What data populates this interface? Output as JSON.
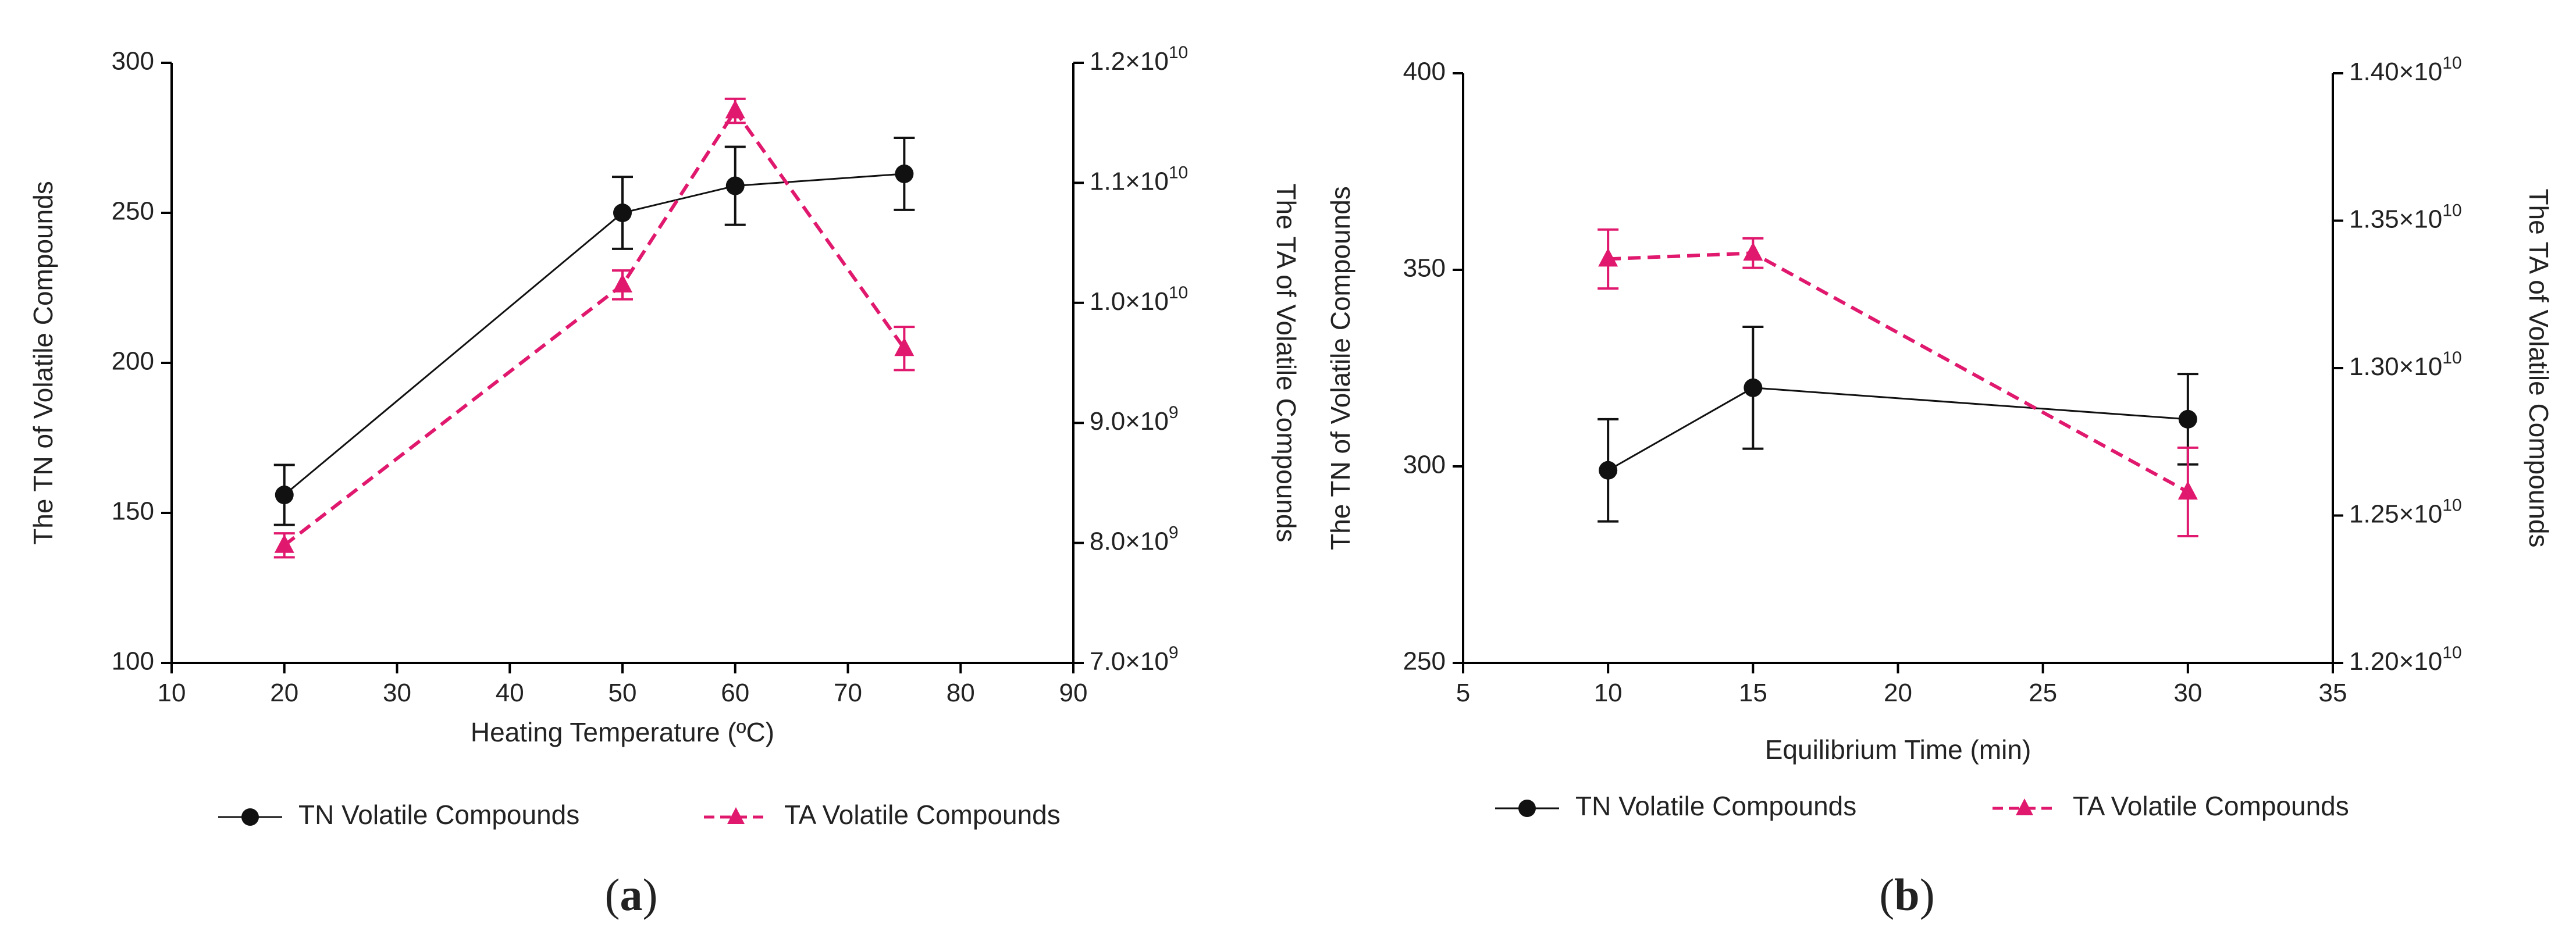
{
  "colors": {
    "tn": "#111111",
    "ta": "#e0186e",
    "axis": "#000000"
  },
  "chart_data": [
    {
      "type": "line",
      "panel_label": "a",
      "xlabel": "Heating Temperature (ºC)",
      "ylabel_left": "The TN of Volatile Compounds",
      "ylabel_right": "The TA of Volatile Compounds",
      "xlim": [
        10,
        90
      ],
      "ylim_left": [
        100,
        300
      ],
      "ylim_right": [
        7000000000.0,
        12000000000.0
      ],
      "x_ticks": [
        "10",
        "20",
        "30",
        "40",
        "50",
        "60",
        "70",
        "80",
        "90"
      ],
      "y_left_ticks": [
        "100",
        "150",
        "200",
        "250",
        "300"
      ],
      "y_right_ticks": [
        {
          "mant": "7.0×10",
          "exp": "9"
        },
        {
          "mant": "8.0×10",
          "exp": "9"
        },
        {
          "mant": "9.0×10",
          "exp": "9"
        },
        {
          "mant": "1.0×10",
          "exp": "10"
        },
        {
          "mant": "1.1×10",
          "exp": "10"
        },
        {
          "mant": "1.2×10",
          "exp": "10"
        }
      ],
      "series": [
        {
          "name": "TN Volatile Compounds",
          "axis": "left",
          "style": "solid",
          "marker": "circle",
          "x": [
            20,
            50,
            60,
            75
          ],
          "y": [
            156,
            250,
            259,
            263
          ],
          "err": [
            10,
            12,
            13,
            12
          ]
        },
        {
          "name": "TA Volatile Compounds",
          "axis": "right",
          "style": "dashed",
          "marker": "triangle",
          "x": [
            20,
            50,
            60,
            75
          ],
          "y": [
            7980000000.0,
            10150000000.0,
            11600000000.0,
            9620000000.0
          ],
          "err": [
            100000000.0,
            120000000.0,
            100000000.0,
            180000000.0
          ]
        }
      ],
      "legend": [
        "TN Volatile Compounds",
        "TA Volatile Compounds"
      ]
    },
    {
      "type": "line",
      "panel_label": "b",
      "xlabel": "Equilibrium Time (min)",
      "ylabel_left": "The TN of Volatile Compounds",
      "ylabel_right": "The TA of Volatile Compounds",
      "xlim": [
        5,
        35
      ],
      "ylim_left": [
        250,
        400
      ],
      "ylim_right": [
        12000000000.0,
        14000000000.0
      ],
      "x_ticks": [
        "5",
        "10",
        "15",
        "20",
        "25",
        "30",
        "35"
      ],
      "y_left_ticks": [
        "250",
        "300",
        "350",
        "400"
      ],
      "y_right_ticks": [
        {
          "mant": "1.20×10",
          "exp": "10"
        },
        {
          "mant": "1.25×10",
          "exp": "10"
        },
        {
          "mant": "1.30×10",
          "exp": "10"
        },
        {
          "mant": "1.35×10",
          "exp": "10"
        },
        {
          "mant": "1.40×10",
          "exp": "10"
        }
      ],
      "series": [
        {
          "name": "TN Volatile Compounds",
          "axis": "left",
          "style": "solid",
          "marker": "circle",
          "x": [
            10,
            15,
            30
          ],
          "y": [
            299,
            320,
            312
          ],
          "err": [
            13,
            15.5,
            11.5
          ]
        },
        {
          "name": "TA Volatile Compounds",
          "axis": "right",
          "style": "dashed",
          "marker": "triangle",
          "x": [
            10,
            15,
            30
          ],
          "y": [
            13370000000.0,
            13390000000.0,
            12580000000.0
          ],
          "err": [
            100000000.0,
            50000000.0,
            150000000.0
          ]
        }
      ],
      "legend": [
        "TN Volatile Compounds",
        "TA Volatile Compounds"
      ]
    }
  ]
}
